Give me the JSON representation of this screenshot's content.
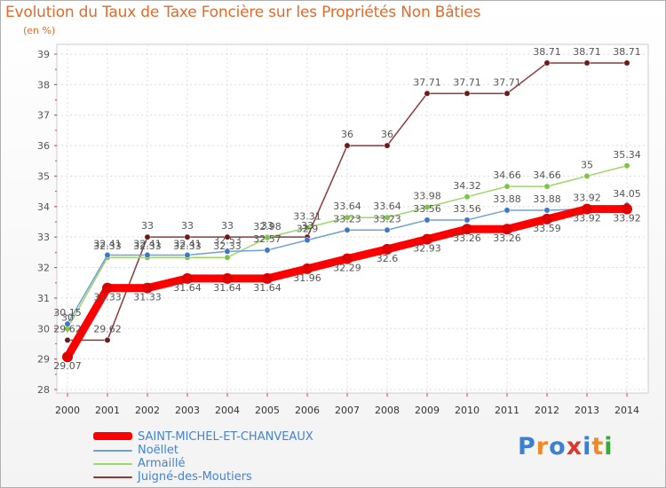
{
  "title": "Evolution du Taux de Taxe Foncière sur les Propriétés Non Bâties",
  "unit": "(en %)",
  "logo": [
    "P",
    "r",
    "o",
    "x",
    "i",
    "t",
    "i"
  ],
  "logo_colors": [
    "#3d7fd1",
    "#f08a24",
    "#3d7fd1",
    "#d93a2b",
    "#3d7fd1",
    "#f08a24",
    "#3aa83a"
  ],
  "chart_data": {
    "type": "line",
    "x": [
      "2000",
      "2001",
      "2002",
      "2003",
      "2004",
      "2005",
      "2006",
      "2007",
      "2008",
      "2009",
      "2010",
      "2011",
      "2012",
      "2013",
      "2014"
    ],
    "ylim": [
      28,
      39
    ],
    "yticks": [
      "28",
      "29",
      "30",
      "31",
      "32",
      "33",
      "34",
      "35",
      "36",
      "37",
      "38",
      "39"
    ],
    "series": [
      {
        "name": "SAINT-MICHEL-ET-CHANVEAUX",
        "color": "#ff0000",
        "marker": "#e10000",
        "values": [
          29.07,
          31.33,
          31.33,
          31.64,
          31.64,
          31.64,
          31.96,
          32.29,
          32.6,
          32.93,
          33.26,
          33.26,
          33.59,
          33.92,
          33.92
        ],
        "labels": [
          "29.07",
          "31.33",
          "31.33",
          "31.64",
          "31.64",
          "31.64",
          "31.96",
          "32.29",
          "32.6",
          "32.93",
          "33.26",
          "33.26",
          "33.59",
          "33.92",
          "33.92"
        ]
      },
      {
        "name": "Noëllet",
        "color": "#6fa0d4",
        "marker": "#3a78c8",
        "values": [
          30.15,
          32.41,
          32.41,
          32.41,
          32.53,
          32.57,
          32.9,
          33.23,
          33.23,
          33.56,
          33.56,
          33.88,
          33.88,
          33.92,
          34.05
        ],
        "labels": [
          "30.15",
          "32.41",
          "32.41",
          "32.41",
          "32.53",
          "32.57",
          "32.9",
          "33.23",
          "33.23",
          "33.56",
          "33.56",
          "33.88",
          "33.88",
          "33.92",
          "34.05"
        ]
      },
      {
        "name": "Armaillé",
        "color": "#9ed66a",
        "marker": "#7ec447",
        "values": [
          30.0,
          32.33,
          32.33,
          32.33,
          32.33,
          32.98,
          33.31,
          33.64,
          33.64,
          33.98,
          34.32,
          34.66,
          34.66,
          35.0,
          35.34
        ],
        "labels": [
          "30",
          "32.33",
          "32.33",
          "32.33",
          "32.33",
          "32.98",
          "33.31",
          "33.64",
          "33.64",
          "33.98",
          "34.32",
          "34.66",
          "34.66",
          "35",
          "35.34"
        ]
      },
      {
        "name": "Juigné-des-Moutiers",
        "color": "#8b3a3a",
        "marker": "#6e1a1a",
        "values": [
          29.62,
          29.62,
          33.0,
          33.0,
          33.0,
          33.0,
          33.0,
          36.0,
          36.0,
          37.71,
          37.71,
          37.71,
          38.71,
          38.71,
          38.71
        ],
        "labels": [
          "29.62",
          "29.62",
          "33",
          "33",
          "33",
          "33",
          "33",
          "36",
          "36",
          "37.71",
          "37.71",
          "37.71",
          "38.71",
          "38.71",
          "38.71"
        ]
      }
    ]
  }
}
